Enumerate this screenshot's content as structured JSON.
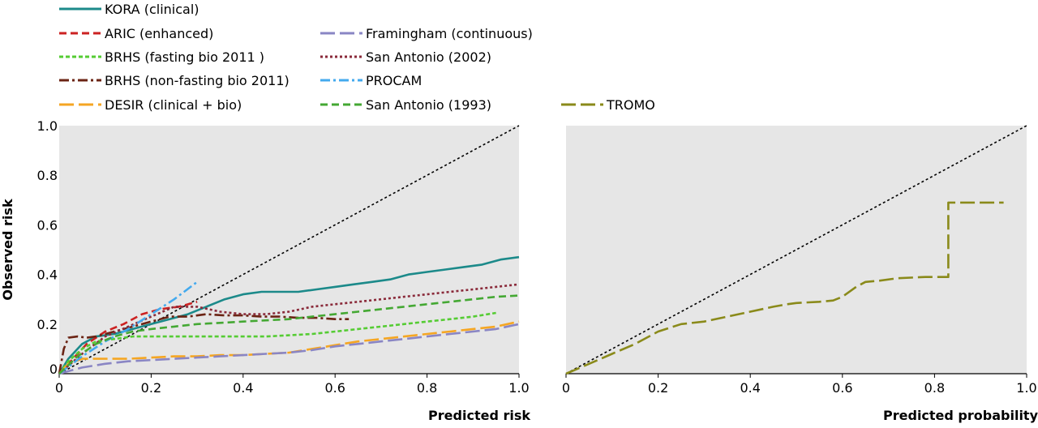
{
  "chart_data": [
    {
      "type": "line",
      "panel": "left",
      "xlabel": "Predicted risk",
      "ylabel": "Observed risk",
      "xlim": [
        0,
        1.0
      ],
      "ylim": [
        0,
        1.0
      ],
      "xticks": [
        "0",
        "0.2",
        "0.4",
        "0.6",
        "0.8",
        "1.0"
      ],
      "yticks": [
        "0",
        "0.2",
        "0.4",
        "0.6",
        "0.8",
        "1.0"
      ],
      "xtick_values": [
        0,
        0.2,
        0.4,
        0.6,
        0.8,
        1.0
      ],
      "ytick_values": [
        0,
        0.2,
        0.4,
        0.6,
        0.8,
        1.0
      ],
      "grid": false,
      "legend_position": "top",
      "reference_line": {
        "x": [
          0,
          1.0
        ],
        "y": [
          0,
          1.0
        ],
        "color": "#000000",
        "style": "dotted"
      },
      "series": [
        {
          "name": "KORA (clinical)",
          "color": "#1c8a8a",
          "style": "solid",
          "x": [
            0,
            0.02,
            0.05,
            0.08,
            0.12,
            0.16,
            0.2,
            0.24,
            0.28,
            0.32,
            0.36,
            0.4,
            0.44,
            0.48,
            0.52,
            0.56,
            0.6,
            0.64,
            0.68,
            0.72,
            0.76,
            0.8,
            0.84,
            0.88,
            0.92,
            0.96,
            1.0
          ],
          "y": [
            0,
            0.06,
            0.12,
            0.15,
            0.16,
            0.18,
            0.2,
            0.22,
            0.24,
            0.27,
            0.3,
            0.32,
            0.33,
            0.33,
            0.33,
            0.34,
            0.35,
            0.36,
            0.37,
            0.38,
            0.4,
            0.41,
            0.42,
            0.43,
            0.44,
            0.46,
            0.47
          ]
        },
        {
          "name": "ARIC (enhanced)",
          "color": "#cc2222",
          "style": "dash",
          "x": [
            0,
            0.03,
            0.06,
            0.1,
            0.14,
            0.18,
            0.22,
            0.26,
            0.3
          ],
          "y": [
            0,
            0.06,
            0.12,
            0.17,
            0.2,
            0.24,
            0.26,
            0.27,
            0.29
          ]
        },
        {
          "name": "BRHS (fasting bio 2011 )",
          "color": "#55cc33",
          "style": "dashdense",
          "x": [
            0,
            0.02,
            0.05,
            0.08,
            0.12,
            0.16,
            0.2,
            0.25,
            0.3,
            0.35,
            0.4,
            0.45,
            0.5,
            0.55,
            0.6,
            0.65,
            0.7,
            0.75,
            0.8,
            0.85,
            0.9,
            0.95
          ],
          "y": [
            0,
            0.05,
            0.1,
            0.13,
            0.14,
            0.15,
            0.15,
            0.15,
            0.15,
            0.15,
            0.15,
            0.15,
            0.155,
            0.16,
            0.17,
            0.18,
            0.19,
            0.2,
            0.21,
            0.22,
            0.23,
            0.245
          ]
        },
        {
          "name": "BRHS (non-fasting bio 2011)",
          "color": "#6b2414",
          "style": "dashdot",
          "x": [
            0,
            0.01,
            0.02,
            0.04,
            0.06,
            0.08,
            0.12,
            0.16,
            0.2,
            0.24,
            0.28,
            0.32,
            0.36,
            0.4,
            0.44,
            0.48,
            0.52,
            0.56,
            0.6,
            0.63
          ],
          "y": [
            0,
            0.1,
            0.145,
            0.15,
            0.145,
            0.15,
            0.17,
            0.19,
            0.21,
            0.23,
            0.23,
            0.24,
            0.235,
            0.235,
            0.23,
            0.23,
            0.225,
            0.225,
            0.22,
            0.22
          ]
        },
        {
          "name": "DESIR (clinical + bio)",
          "color": "#f5a623",
          "style": "longdash",
          "x": [
            0,
            0.02,
            0.05,
            0.1,
            0.15,
            0.2,
            0.25,
            0.3,
            0.35,
            0.4,
            0.45,
            0.5,
            0.55,
            0.6,
            0.65,
            0.7,
            0.75,
            0.8,
            0.85,
            0.9,
            0.95,
            1.0
          ],
          "y": [
            0,
            0.04,
            0.06,
            0.06,
            0.06,
            0.065,
            0.07,
            0.07,
            0.075,
            0.075,
            0.08,
            0.085,
            0.1,
            0.115,
            0.13,
            0.14,
            0.15,
            0.16,
            0.17,
            0.18,
            0.19,
            0.21
          ]
        },
        {
          "name": "Framingham (continuous)",
          "color": "#8a86c4",
          "style": "longdash",
          "x": [
            0,
            0.02,
            0.05,
            0.1,
            0.15,
            0.2,
            0.25,
            0.3,
            0.35,
            0.4,
            0.45,
            0.5,
            0.55,
            0.6,
            0.65,
            0.7,
            0.75,
            0.8,
            0.85,
            0.9,
            0.95,
            1.0
          ],
          "y": [
            0,
            0.01,
            0.025,
            0.04,
            0.05,
            0.055,
            0.06,
            0.065,
            0.07,
            0.075,
            0.08,
            0.085,
            0.095,
            0.11,
            0.12,
            0.13,
            0.14,
            0.15,
            0.16,
            0.17,
            0.18,
            0.2
          ]
        },
        {
          "name": "San Antonio (2002)",
          "color": "#8a2a3a",
          "style": "dot",
          "x": [
            0,
            0.05,
            0.1,
            0.15,
            0.2,
            0.25,
            0.3,
            0.35,
            0.4,
            0.45,
            0.5,
            0.55,
            0.6,
            0.65,
            0.7,
            0.75,
            0.8,
            0.85,
            0.9,
            0.95,
            1.0
          ],
          "y": [
            0,
            0.08,
            0.15,
            0.19,
            0.23,
            0.27,
            0.27,
            0.25,
            0.24,
            0.24,
            0.25,
            0.27,
            0.28,
            0.29,
            0.3,
            0.31,
            0.32,
            0.33,
            0.34,
            0.35,
            0.36
          ]
        },
        {
          "name": "PROCAM",
          "color": "#44aaee",
          "style": "dashdot",
          "x": [
            0,
            0.05,
            0.1,
            0.15,
            0.2,
            0.25,
            0.3
          ],
          "y": [
            0,
            0.07,
            0.13,
            0.18,
            0.24,
            0.3,
            0.37
          ]
        },
        {
          "name": "San Antonio (1993)",
          "color": "#44a833",
          "style": "dash",
          "x": [
            0,
            0.04,
            0.08,
            0.12,
            0.16,
            0.2,
            0.25,
            0.3,
            0.35,
            0.4,
            0.45,
            0.5,
            0.55,
            0.6,
            0.65,
            0.7,
            0.75,
            0.8,
            0.85,
            0.9,
            0.95,
            1.0
          ],
          "y": [
            0,
            0.07,
            0.12,
            0.15,
            0.17,
            0.18,
            0.19,
            0.2,
            0.205,
            0.21,
            0.215,
            0.22,
            0.23,
            0.24,
            0.25,
            0.26,
            0.27,
            0.28,
            0.29,
            0.3,
            0.31,
            0.315
          ]
        }
      ]
    },
    {
      "type": "line",
      "panel": "right",
      "xlabel": "Predicted probability",
      "ylabel": "",
      "xlim": [
        0,
        1.0
      ],
      "ylim": [
        0,
        1.0
      ],
      "xticks": [
        "0",
        "0.2",
        "0.4",
        "0.6",
        "0.8",
        "1.0"
      ],
      "xtick_values": [
        0,
        0.2,
        0.4,
        0.6,
        0.8,
        1.0
      ],
      "grid": false,
      "legend_position": "top",
      "reference_line": {
        "x": [
          0,
          1.0
        ],
        "y": [
          0,
          1.0
        ],
        "color": "#000000",
        "style": "dotted"
      },
      "series": [
        {
          "name": "TROMO",
          "color": "#8a8a1a",
          "style": "longdash",
          "x": [
            0,
            0.05,
            0.1,
            0.15,
            0.2,
            0.25,
            0.3,
            0.35,
            0.4,
            0.45,
            0.48,
            0.5,
            0.55,
            0.58,
            0.6,
            0.63,
            0.64,
            0.65,
            0.68,
            0.72,
            0.78,
            0.83,
            0.83,
            0.95
          ],
          "y": [
            0,
            0.04,
            0.08,
            0.12,
            0.17,
            0.2,
            0.21,
            0.23,
            0.25,
            0.27,
            0.28,
            0.285,
            0.29,
            0.295,
            0.31,
            0.35,
            0.36,
            0.37,
            0.375,
            0.385,
            0.39,
            0.39,
            0.69,
            0.69
          ]
        }
      ]
    }
  ]
}
